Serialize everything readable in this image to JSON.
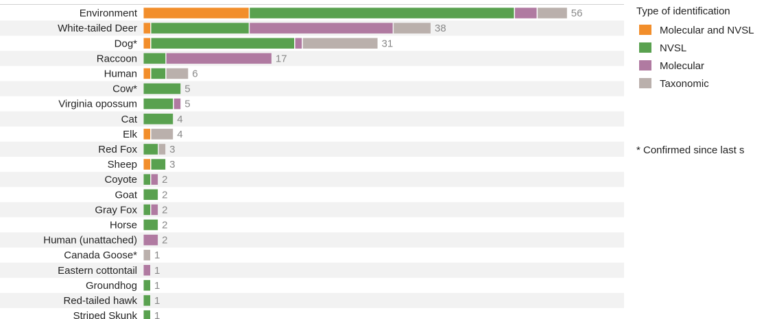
{
  "chart_data": {
    "type": "bar",
    "orientation": "horizontal",
    "stacked": true,
    "categories": [
      "Environment",
      "White-tailed Deer",
      "Dog*",
      "Raccoon",
      "Human",
      "Cow*",
      "Virginia opossum",
      "Cat",
      "Elk",
      "Red Fox",
      "Sheep",
      "Coyote",
      "Goat",
      "Gray Fox",
      "Horse",
      "Human (unattached)",
      "Canada Goose*",
      "Eastern cottontail",
      "Groundhog",
      "Red-tailed hawk",
      "Striped Skunk"
    ],
    "series": [
      {
        "name": "Molecular and NVSL",
        "color": "#f28e2b",
        "values": [
          14,
          1,
          1,
          0,
          1,
          0,
          0,
          0,
          1,
          0,
          1,
          0,
          0,
          0,
          0,
          0,
          0,
          0,
          0,
          0,
          0
        ]
      },
      {
        "name": "NVSL",
        "color": "#59a14f",
        "values": [
          35,
          13,
          19,
          3,
          2,
          5,
          4,
          4,
          0,
          2,
          2,
          1,
          2,
          1,
          2,
          0,
          0,
          0,
          1,
          1,
          1
        ]
      },
      {
        "name": "Molecular",
        "color": "#b07aa1",
        "values": [
          3,
          19,
          1,
          14,
          0,
          0,
          1,
          0,
          0,
          0,
          0,
          1,
          0,
          1,
          0,
          2,
          0,
          1,
          0,
          0,
          0
        ]
      },
      {
        "name": "Taxonomic",
        "color": "#bab0ac",
        "values": [
          4,
          5,
          10,
          0,
          3,
          0,
          0,
          0,
          3,
          1,
          0,
          0,
          0,
          0,
          0,
          0,
          1,
          0,
          0,
          0,
          0
        ]
      }
    ],
    "totals": [
      56,
      38,
      31,
      17,
      6,
      5,
      5,
      4,
      4,
      3,
      3,
      2,
      2,
      2,
      2,
      2,
      1,
      1,
      1,
      1,
      1
    ],
    "xlim": [
      0,
      64
    ],
    "grid": false,
    "row_banding": true,
    "legend": {
      "title": "Type of identification",
      "position": "right"
    },
    "footnote": "* Confirmed since last s"
  }
}
